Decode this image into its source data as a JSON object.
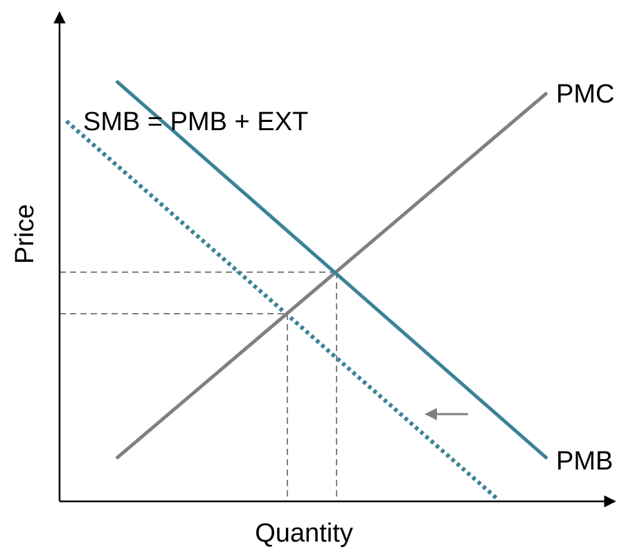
{
  "diagram": {
    "axes": {
      "x_label": "Quantity",
      "y_label": "Price"
    },
    "curves": {
      "pmc": {
        "label": "PMC",
        "color": "#808080",
        "style": "solid"
      },
      "pmb": {
        "label": "PMB",
        "color": "#3b8296",
        "style": "solid"
      },
      "smb": {
        "label": "SMB = PMB + EXT",
        "color": "#3b8296",
        "style": "dotted"
      }
    },
    "guides": {
      "color": "#808080",
      "style": "dashed"
    },
    "shift_arrow": {
      "direction": "left",
      "color": "#808080"
    }
  }
}
